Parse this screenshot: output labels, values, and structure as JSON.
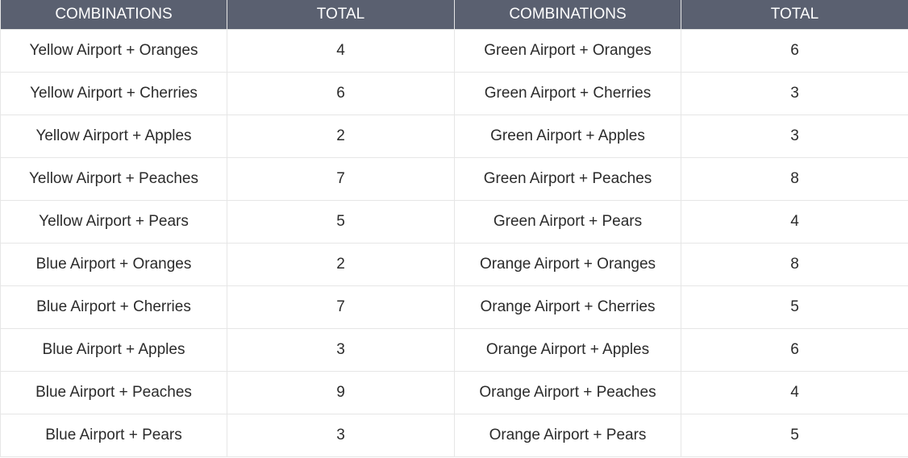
{
  "headers": [
    "COMBINATIONS",
    "TOTAL",
    "COMBINATIONS",
    "TOTAL"
  ],
  "rows": [
    [
      "Yellow Airport + Oranges",
      "4",
      "Green Airport + Oranges",
      "6"
    ],
    [
      "Yellow Airport + Cherries",
      "6",
      "Green Airport + Cherries",
      "3"
    ],
    [
      "Yellow Airport + Apples",
      "2",
      "Green Airport + Apples",
      "3"
    ],
    [
      "Yellow Airport + Peaches",
      "7",
      "Green Airport + Peaches",
      "8"
    ],
    [
      "Yellow Airport + Pears",
      "5",
      "Green Airport + Pears",
      "4"
    ],
    [
      "Blue Airport + Oranges",
      "2",
      "Orange Airport + Oranges",
      "8"
    ],
    [
      "Blue Airport + Cherries",
      "7",
      "Orange Airport + Cherries",
      "5"
    ],
    [
      "Blue Airport + Apples",
      "3",
      "Orange Airport + Apples",
      "6"
    ],
    [
      "Blue Airport + Peaches",
      "9",
      "Orange Airport + Peaches",
      "4"
    ],
    [
      "Blue Airport + Pears",
      "3",
      "Orange Airport + Pears",
      "5"
    ]
  ],
  "colors": {
    "header_bg": "#5a6070",
    "header_text": "#ffffff",
    "cell_text": "#2b2b2b",
    "border": "#e6e6e6"
  }
}
